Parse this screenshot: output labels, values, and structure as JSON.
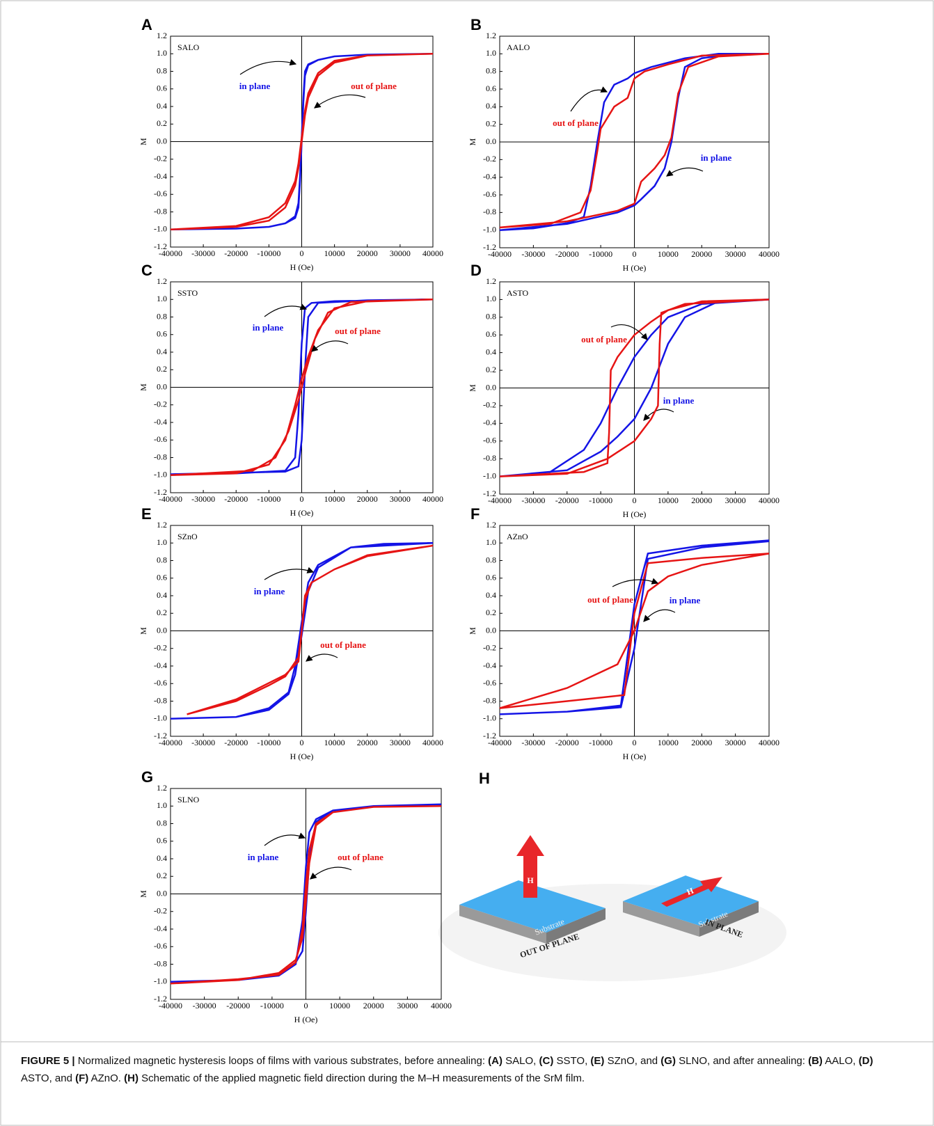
{
  "chart_data": [
    {
      "type": "line",
      "panel": "A",
      "label": "SALO",
      "x_label": "H (Oe)",
      "y_label": "M",
      "xlim": [
        -40000,
        40000
      ],
      "ylim": [
        -1.2,
        1.2
      ],
      "xticks": [
        -40000,
        -30000,
        -20000,
        -10000,
        0,
        10000,
        20000,
        30000,
        40000
      ],
      "yticks": [
        1.2,
        {
          "value": 1,
          "label": "1.0"
        },
        0.8,
        0.6,
        0.4,
        0.2,
        {
          "value": 0,
          "label": "0.0"
        },
        -0.2,
        -0.4,
        -0.6,
        -0.8,
        {
          "value": -1,
          "label": "-1.0"
        },
        -1.2
      ],
      "series": [
        {
          "name": "in plane",
          "color": "#1414e6",
          "x": [
            40000,
            20000,
            10000,
            5000,
            2000,
            1000,
            500,
            0,
            -500,
            -1000,
            -2000,
            -5000,
            -10000,
            -20000,
            -40000,
            -20000,
            -10000,
            -5000,
            -2000,
            -1000,
            -500,
            0,
            500,
            1000,
            2000,
            5000,
            10000,
            20000,
            40000
          ],
          "values": [
            1.0,
            0.99,
            0.97,
            0.93,
            0.88,
            0.8,
            0.5,
            0.05,
            -0.4,
            -0.7,
            -0.85,
            -0.93,
            -0.97,
            -0.99,
            -1.0,
            -0.99,
            -0.97,
            -0.93,
            -0.87,
            -0.75,
            -0.45,
            0.0,
            0.45,
            0.75,
            0.87,
            0.93,
            0.97,
            0.99,
            1.0
          ]
        },
        {
          "name": "out of plane",
          "color": "#e61414",
          "x": [
            40000,
            20000,
            10000,
            5000,
            2000,
            1000,
            0,
            -1000,
            -2000,
            -5000,
            -10000,
            -20000,
            -40000,
            -20000,
            -10000,
            -5000,
            -2000,
            -1000,
            0,
            1000,
            2000,
            5000,
            10000,
            20000,
            40000
          ],
          "values": [
            1.0,
            0.98,
            0.9,
            0.75,
            0.5,
            0.3,
            0.0,
            -0.3,
            -0.5,
            -0.75,
            -0.9,
            -0.97,
            -1.0,
            -0.96,
            -0.86,
            -0.7,
            -0.45,
            -0.25,
            0.05,
            0.35,
            0.55,
            0.78,
            0.92,
            0.98,
            1.0
          ]
        }
      ]
    },
    {
      "type": "line",
      "panel": "B",
      "label": "AALO",
      "x_label": "H (Oe)",
      "y_label": "M",
      "xlim": [
        -40000,
        40000
      ],
      "ylim": [
        -1.2,
        1.2
      ],
      "xticks": [
        -40000,
        -30000,
        -20000,
        -10000,
        0,
        10000,
        20000,
        30000,
        40000
      ],
      "yticks": [
        1.2,
        {
          "value": 1,
          "label": "1.0"
        },
        0.8,
        0.6,
        0.4,
        0.2,
        {
          "value": 0,
          "label": "0.0"
        },
        -0.2,
        -0.4,
        -0.6,
        -0.8,
        {
          "value": -1,
          "label": "-1.0"
        },
        -1.2
      ],
      "series": [
        {
          "name": "in plane",
          "color": "#1414e6",
          "x": [
            40000,
            25000,
            15000,
            5000,
            0,
            -2000,
            -6000,
            -9000,
            -11000,
            -13000,
            -15000,
            -20000,
            -30000,
            -40000,
            -20000,
            -5000,
            0,
            2000,
            6000,
            9000,
            11000,
            13000,
            15000,
            20000,
            30000,
            40000
          ],
          "values": [
            1.0,
            1.0,
            0.95,
            0.85,
            0.78,
            0.72,
            0.65,
            0.45,
            0.0,
            -0.5,
            -0.85,
            -0.92,
            -0.98,
            -1.0,
            -0.93,
            -0.8,
            -0.72,
            -0.65,
            -0.5,
            -0.3,
            0.0,
            0.5,
            0.85,
            0.95,
            1.0,
            1.0
          ]
        },
        {
          "name": "out of plane",
          "color": "#e61414",
          "x": [
            40000,
            20000,
            10000,
            3000,
            0,
            -2000,
            -6000,
            -10000,
            -11000,
            -13000,
            -16000,
            -25000,
            -40000,
            -20000,
            -5000,
            0,
            2000,
            6000,
            9000,
            11000,
            13000,
            16000,
            25000,
            40000
          ],
          "values": [
            1.0,
            0.98,
            0.88,
            0.8,
            0.72,
            0.5,
            0.4,
            0.15,
            -0.1,
            -0.55,
            -0.8,
            -0.93,
            -0.97,
            -0.9,
            -0.78,
            -0.7,
            -0.45,
            -0.3,
            -0.15,
            0.05,
            0.55,
            0.85,
            0.97,
            1.0
          ]
        }
      ]
    },
    {
      "type": "line",
      "panel": "C",
      "label": "SSTO",
      "x_label": "H (Oe)",
      "y_label": "M",
      "xlim": [
        -40000,
        40000
      ],
      "ylim": [
        -1.2,
        1.2
      ],
      "xticks": [
        -40000,
        -30000,
        -20000,
        -10000,
        0,
        10000,
        20000,
        30000,
        40000
      ],
      "yticks": [
        1.2,
        {
          "value": 1,
          "label": "1.0"
        },
        0.8,
        0.6,
        0.4,
        0.2,
        {
          "value": 0,
          "label": "0.0"
        },
        -0.2,
        -0.4,
        -0.6,
        -0.8,
        {
          "value": -1,
          "label": "-1.0"
        },
        -1.2
      ],
      "series": [
        {
          "name": "in plane",
          "color": "#1414e6",
          "x": [
            40000,
            10000,
            3000,
            1000,
            0,
            -1000,
            -2000,
            -5000,
            -20000,
            -40000,
            -5000,
            -1000,
            0,
            1000,
            2000,
            5000,
            20000,
            40000
          ],
          "values": [
            1.0,
            0.98,
            0.96,
            0.9,
            0.5,
            -0.3,
            -0.8,
            -0.95,
            -0.98,
            -0.99,
            -0.96,
            -0.9,
            -0.6,
            0.2,
            0.8,
            0.96,
            0.99,
            1.0
          ]
        },
        {
          "name": "out of plane",
          "color": "#e61414",
          "x": [
            40000,
            20000,
            10000,
            5000,
            2000,
            0,
            -2000,
            -5000,
            -10000,
            -20000,
            -40000,
            -15000,
            -8000,
            -4000,
            -1000,
            1000,
            4000,
            8000,
            15000,
            40000
          ],
          "values": [
            1.0,
            0.98,
            0.9,
            0.65,
            0.35,
            0.1,
            -0.2,
            -0.6,
            -0.88,
            -0.98,
            -1.0,
            -0.95,
            -0.8,
            -0.5,
            -0.15,
            0.15,
            0.55,
            0.85,
            0.97,
            1.0
          ]
        }
      ]
    },
    {
      "type": "line",
      "panel": "D",
      "label": "ASTO",
      "x_label": "H (Oe)",
      "y_label": "M",
      "xlim": [
        -40000,
        40000
      ],
      "ylim": [
        -1.2,
        1.2
      ],
      "xticks": [
        -40000,
        -30000,
        -20000,
        -10000,
        0,
        10000,
        20000,
        30000,
        40000
      ],
      "yticks": [
        1.2,
        {
          "value": 1,
          "label": "1.0"
        },
        0.8,
        0.6,
        0.4,
        0.2,
        {
          "value": 0,
          "label": "0.0"
        },
        -0.2,
        -0.4,
        -0.6,
        -0.8,
        {
          "value": -1,
          "label": "-1.0"
        },
        -1.2
      ],
      "series": [
        {
          "name": "in plane",
          "color": "#1414e6",
          "x": [
            40000,
            20000,
            10000,
            5000,
            0,
            -5000,
            -10000,
            -15000,
            -25000,
            -40000,
            -20000,
            -10000,
            -5000,
            0,
            5000,
            10000,
            15000,
            25000,
            40000
          ],
          "values": [
            1.0,
            0.95,
            0.8,
            0.6,
            0.35,
            0.0,
            -0.4,
            -0.7,
            -0.95,
            -1.0,
            -0.93,
            -0.72,
            -0.55,
            -0.35,
            0.0,
            0.5,
            0.8,
            0.98,
            1.0
          ]
        },
        {
          "name": "out of plane",
          "color": "#e61414",
          "x": [
            40000,
            20000,
            10000,
            5000,
            0,
            -5000,
            -7000,
            -7500,
            -8000,
            -15000,
            -40000,
            -20000,
            -8000,
            0,
            5000,
            7000,
            7500,
            8000,
            15000,
            40000
          ],
          "values": [
            1.0,
            0.98,
            0.88,
            0.75,
            0.6,
            0.35,
            0.2,
            -0.5,
            -0.85,
            -0.95,
            -1.0,
            -0.97,
            -0.8,
            -0.6,
            -0.35,
            -0.2,
            0.5,
            0.85,
            0.95,
            1.0
          ]
        }
      ]
    },
    {
      "type": "line",
      "panel": "E",
      "label": "SZnO",
      "x_label": "H (Oe)",
      "y_label": "M",
      "xlim": [
        -40000,
        40000
      ],
      "ylim": [
        -1.2,
        1.2
      ],
      "xticks": [
        -40000,
        -30000,
        -20000,
        -10000,
        0,
        10000,
        20000,
        30000,
        40000
      ],
      "yticks": [
        1.2,
        {
          "value": 1,
          "label": "1.0"
        },
        0.8,
        0.6,
        0.4,
        0.2,
        {
          "value": 0,
          "label": "0.0"
        },
        -0.2,
        -0.4,
        -0.6,
        -0.8,
        {
          "value": -1,
          "label": "-1.0"
        },
        -1.2
      ],
      "series": [
        {
          "name": "in plane",
          "color": "#1414e6",
          "x": [
            40000,
            25000,
            15000,
            5000,
            2000,
            0,
            -2000,
            -4000,
            -10000,
            -20000,
            -40000,
            -20000,
            -10000,
            -4000,
            -2000,
            0,
            2000,
            5000,
            15000,
            40000
          ],
          "values": [
            1.0,
            0.99,
            0.95,
            0.75,
            0.55,
            0.1,
            -0.4,
            -0.7,
            -0.88,
            -0.98,
            -1.0,
            -0.98,
            -0.9,
            -0.72,
            -0.5,
            -0.05,
            0.45,
            0.72,
            0.95,
            1.0
          ]
        },
        {
          "name": "out of plane",
          "color": "#e61414",
          "x": [
            40000,
            20000,
            10000,
            3000,
            1000,
            0,
            -1000,
            -5000,
            -10000,
            -20000,
            -35000,
            -20000,
            -5000,
            -1000,
            0,
            1000,
            3000,
            10000,
            20000,
            40000
          ],
          "values": [
            0.97,
            0.85,
            0.7,
            0.55,
            0.4,
            0.0,
            -0.3,
            -0.52,
            -0.62,
            -0.8,
            -0.95,
            -0.78,
            -0.5,
            -0.35,
            0.0,
            0.35,
            0.55,
            0.7,
            0.86,
            0.97
          ]
        }
      ]
    },
    {
      "type": "line",
      "panel": "F",
      "label": "AZnO",
      "x_label": "H (Oe)",
      "y_label": "M",
      "xlim": [
        -40000,
        40000
      ],
      "ylim": [
        -1.2,
        1.2
      ],
      "xticks": [
        -40000,
        -30000,
        -20000,
        -10000,
        0,
        10000,
        20000,
        30000,
        40000
      ],
      "yticks": [
        1.2,
        {
          "value": 1,
          "label": "1.0"
        },
        0.8,
        0.6,
        0.4,
        0.2,
        {
          "value": 0,
          "label": "0.0"
        },
        -0.2,
        -0.4,
        -0.6,
        -0.8,
        {
          "value": -1,
          "label": "-1.0"
        },
        -1.2
      ],
      "series": [
        {
          "name": "in plane",
          "color": "#1414e6",
          "x": [
            40000,
            20000,
            4000,
            0,
            -4000,
            -20000,
            -40000,
            -20000,
            -4000,
            0,
            4000,
            20000,
            40000
          ],
          "values": [
            1.03,
            0.97,
            0.88,
            0.3,
            -0.85,
            -0.92,
            -0.95,
            -0.92,
            -0.87,
            -0.2,
            0.82,
            0.95,
            1.02
          ]
        },
        {
          "name": "out of plane",
          "color": "#e61414",
          "x": [
            40000,
            20000,
            4000,
            0,
            -3000,
            -20000,
            -40000,
            -20000,
            -5000,
            0,
            4000,
            10000,
            20000,
            40000
          ],
          "values": [
            0.88,
            0.83,
            0.77,
            0.2,
            -0.73,
            -0.8,
            -0.88,
            -0.65,
            -0.38,
            0.0,
            0.45,
            0.62,
            0.75,
            0.88
          ]
        }
      ]
    },
    {
      "type": "line",
      "panel": "G",
      "label": "SLNO",
      "x_label": "H (Oe)",
      "y_label": "M",
      "xlim": [
        -40000,
        40000
      ],
      "ylim": [
        -1.2,
        1.2
      ],
      "xticks": [
        -40000,
        -30000,
        -20000,
        -10000,
        0,
        10000,
        20000,
        30000,
        40000
      ],
      "yticks": [
        1.2,
        {
          "value": 1,
          "label": "1.0"
        },
        0.8,
        0.6,
        0.4,
        0.2,
        {
          "value": 0,
          "label": "0.0"
        },
        -0.2,
        -0.4,
        -0.6,
        -0.8,
        {
          "value": -1,
          "label": "-1.0"
        },
        -1.2
      ],
      "series": [
        {
          "name": "in plane",
          "color": "#1414e6",
          "x": [
            40000,
            20000,
            8000,
            3000,
            1000,
            0,
            -1000,
            -3000,
            -8000,
            -20000,
            -40000,
            -20000,
            -8000,
            -3000,
            -1000,
            0,
            1000,
            3000,
            8000,
            20000,
            40000
          ],
          "values": [
            1.02,
            1.0,
            0.95,
            0.85,
            0.7,
            0.3,
            -0.3,
            -0.8,
            -0.93,
            -0.98,
            -1.0,
            -0.98,
            -0.92,
            -0.78,
            -0.65,
            -0.2,
            0.4,
            0.82,
            0.95,
            1.0,
            1.02
          ]
        },
        {
          "name": "out of plane",
          "color": "#e61414",
          "x": [
            40000,
            20000,
            8000,
            3000,
            1000,
            0,
            -1000,
            -3000,
            -8000,
            -20000,
            -40000,
            -20000,
            -8000,
            -3000,
            -1000,
            0,
            1000,
            3000,
            8000,
            20000,
            40000
          ],
          "values": [
            1.0,
            0.99,
            0.93,
            0.8,
            0.5,
            0.1,
            -0.4,
            -0.78,
            -0.92,
            -0.97,
            -1.02,
            -0.98,
            -0.9,
            -0.75,
            -0.5,
            -0.1,
            0.35,
            0.78,
            0.93,
            0.99,
            1.0
          ]
        }
      ]
    }
  ],
  "schematic": {
    "panel": "H",
    "substrate": "Substrate",
    "field": "H",
    "out_of_plane": "OUT OF PLANE",
    "in_plane": "IN PLANE"
  },
  "caption": {
    "parts": [
      {
        "text": "FIGURE 5 |",
        "bold": true
      },
      {
        "text": " Normalized magnetic hysteresis loops of films with various substrates, before annealing: ",
        "bold": false
      },
      {
        "text": "(A)",
        "bold": true
      },
      {
        "text": " SALO, ",
        "bold": false
      },
      {
        "text": "(C)",
        "bold": true
      },
      {
        "text": " SSTO, ",
        "bold": false
      },
      {
        "text": "(E)",
        "bold": true
      },
      {
        "text": " SZnO, and ",
        "bold": false
      },
      {
        "text": "(G)",
        "bold": true
      },
      {
        "text": " SLNO, and after annealing: ",
        "bold": false
      },
      {
        "text": "(B)",
        "bold": true
      },
      {
        "text": " AALO, ",
        "bold": false
      },
      {
        "text": "(D)",
        "bold": true
      },
      {
        "text": " ASTO, and ",
        "bold": false
      },
      {
        "text": "(F)",
        "bold": true
      },
      {
        "text": " AZnO. ",
        "bold": false
      },
      {
        "text": "(H)",
        "bold": true
      },
      {
        "text": " Schematic of the applied magnetic field direction during the M–H measurements of the SrM film.",
        "bold": false
      }
    ]
  }
}
